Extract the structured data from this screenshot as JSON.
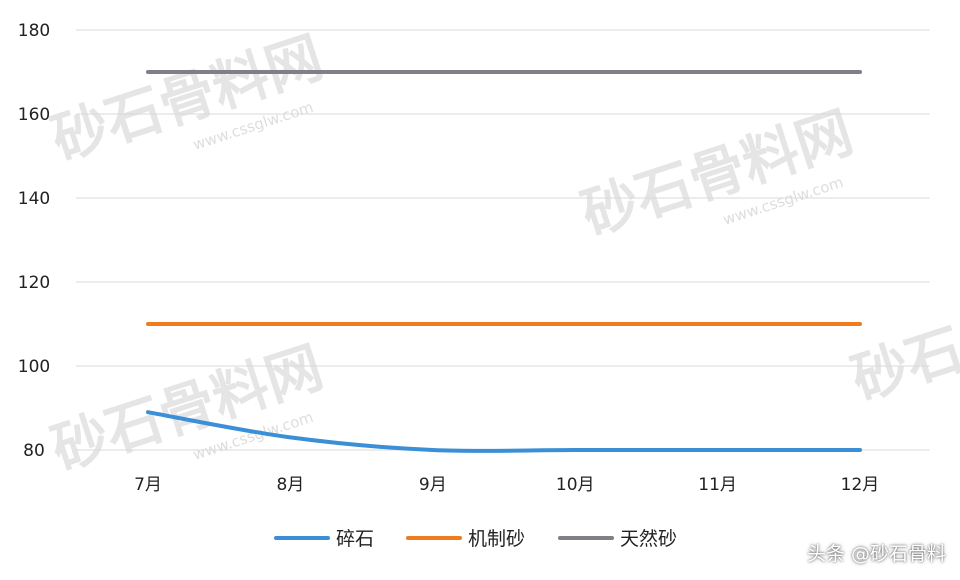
{
  "chart_data": {
    "type": "line",
    "categories": [
      "7月",
      "8月",
      "9月",
      "10月",
      "11月",
      "12月"
    ],
    "ylim": [
      80,
      180
    ],
    "yticks": [
      80,
      100,
      120,
      140,
      160,
      180
    ],
    "grid": true,
    "legend_position": "bottom",
    "series": [
      {
        "name": "碎石",
        "color": "#3b8fd6",
        "values": [
          89,
          83,
          80,
          80,
          80,
          80
        ]
      },
      {
        "name": "机制砂",
        "color": "#f07c1e",
        "values": [
          110,
          110,
          110,
          110,
          110,
          110
        ]
      },
      {
        "name": "天然砂",
        "color": "#7f7f86",
        "values": [
          170,
          170,
          170,
          170,
          170,
          170
        ]
      }
    ]
  },
  "watermark": {
    "text": "砂石骨料网",
    "url": "www.cssglw.com"
  },
  "credit": "头条 @砂石骨料"
}
